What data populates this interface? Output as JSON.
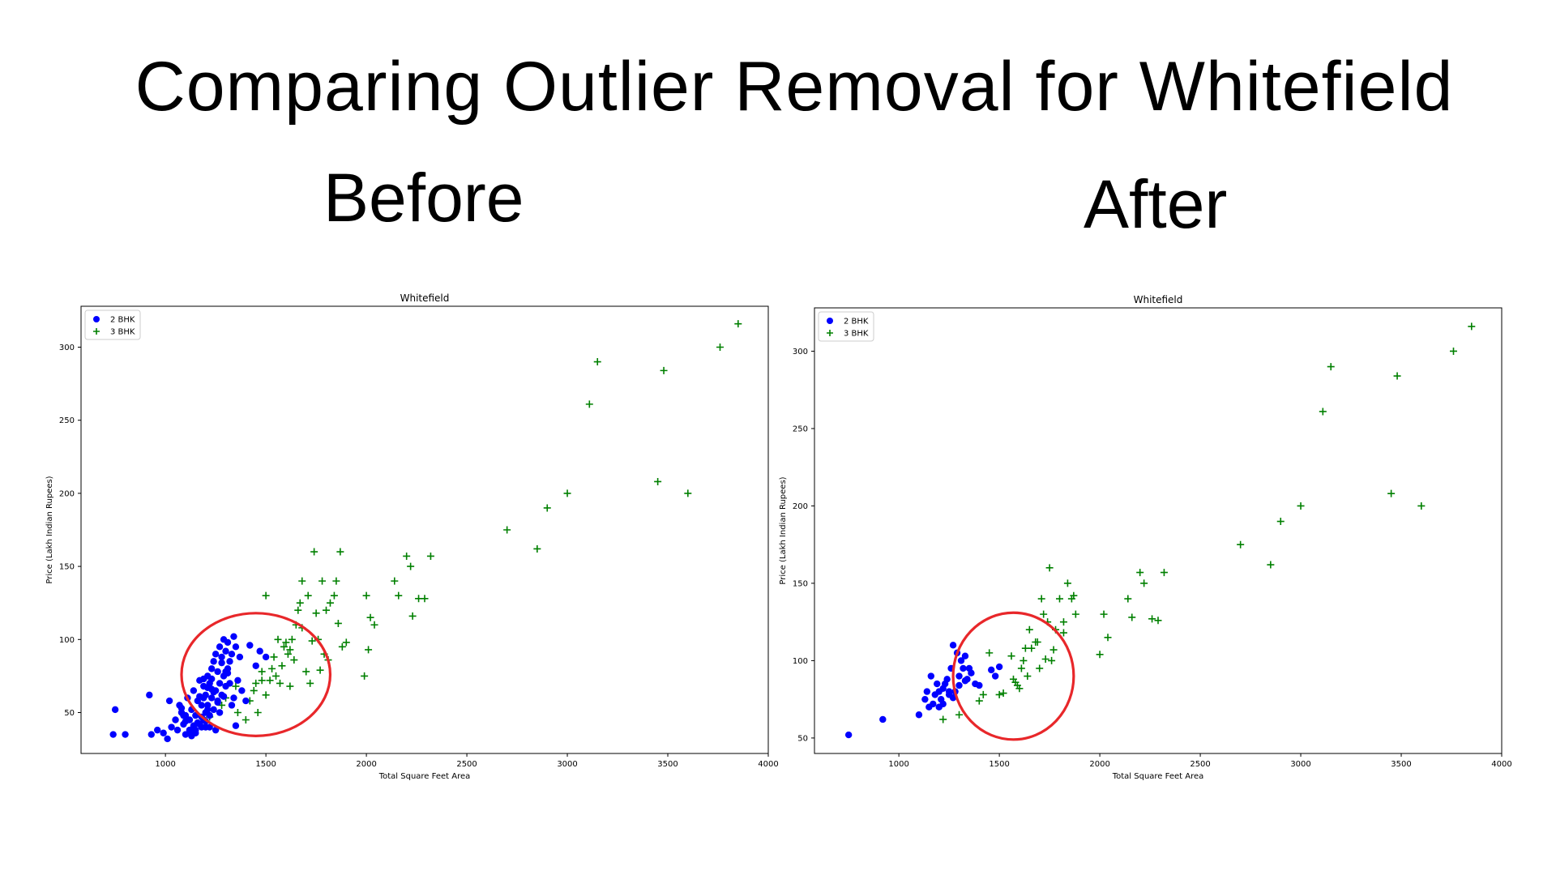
{
  "title": "Comparing Outlier Removal for Whitefield",
  "panels": {
    "before_label": "Before",
    "after_label": "After"
  },
  "colors": {
    "bhk2": "#0000ff",
    "bhk3": "#008000",
    "highlight": "#e8272a"
  },
  "chart_data": [
    {
      "type": "scatter",
      "title": "Whitefield",
      "xlabel": "Total Square Feet Area",
      "ylabel": "Price (Lakh Indian Rupees)",
      "xlim": [
        580,
        4000
      ],
      "ylim": [
        22,
        328
      ],
      "xticks": [
        1000,
        1500,
        2000,
        2500,
        3000,
        3500,
        4000
      ],
      "xtick_labels": [
        "1000",
        "1500",
        "2000",
        "2500",
        "3000",
        "3500",
        "4000"
      ],
      "yticks": [
        50,
        100,
        150,
        200,
        250,
        300
      ],
      "ytick_labels": [
        "50",
        "100",
        "150",
        "200",
        "250",
        "300"
      ],
      "legend_position": "top-left",
      "highlight_ellipse": {
        "cx": 1450,
        "cy": 76,
        "rx": 370,
        "ry": 42
      },
      "series": [
        {
          "name": "2 BHK",
          "marker": "circle",
          "x": [
            740,
            750,
            800,
            920,
            930,
            960,
            990,
            1010,
            1020,
            1030,
            1050,
            1060,
            1070,
            1080,
            1090,
            1100,
            1100,
            1110,
            1120,
            1120,
            1130,
            1140,
            1140,
            1150,
            1150,
            1160,
            1170,
            1170,
            1180,
            1180,
            1190,
            1190,
            1200,
            1200,
            1200,
            1210,
            1210,
            1220,
            1220,
            1230,
            1230,
            1240,
            1240,
            1250,
            1250,
            1260,
            1260,
            1270,
            1270,
            1280,
            1280,
            1290,
            1290,
            1300,
            1300,
            1310,
            1310,
            1320,
            1330,
            1340,
            1350,
            1360,
            1370,
            1380,
            1400,
            1420,
            1450,
            1470,
            1500,
            1130,
            1150,
            1170,
            1100,
            1090,
            1080,
            1200,
            1220,
            1250,
            1270,
            1260,
            1240,
            1230,
            1210,
            1190,
            1180,
            1160,
            1140,
            1120,
            1300,
            1320,
            1340,
            1280,
            1310,
            1330,
            1290,
            1350,
            1210,
            1190,
            1230,
            1170
          ],
          "y": [
            35,
            52,
            35,
            62,
            35,
            38,
            36,
            32,
            58,
            40,
            45,
            38,
            55,
            50,
            42,
            48,
            35,
            60,
            45,
            38,
            52,
            40,
            65,
            48,
            36,
            58,
            42,
            72,
            55,
            40,
            68,
            45,
            62,
            50,
            40,
            75,
            55,
            70,
            48,
            80,
            60,
            85,
            52,
            90,
            65,
            78,
            58,
            95,
            70,
            88,
            62,
            100,
            75,
            92,
            68,
            98,
            80,
            85,
            90,
            102,
            95,
            72,
            88,
            65,
            58,
            96,
            82,
            92,
            88,
            34,
            38,
            42,
            44,
            48,
            53,
            44,
            40,
            38,
            50,
            57,
            64,
            73,
            67,
            60,
            47,
            43,
            41,
            36,
            78,
            70,
            60,
            84,
            77,
            55,
            61,
            41,
            52,
            73,
            66,
            61
          ]
        },
        {
          "name": "3 BHK",
          "marker": "plus",
          "x": [
            1220,
            1280,
            1300,
            1350,
            1360,
            1400,
            1420,
            1440,
            1450,
            1460,
            1480,
            1500,
            1500,
            1520,
            1540,
            1550,
            1560,
            1580,
            1590,
            1600,
            1610,
            1620,
            1630,
            1640,
            1650,
            1660,
            1670,
            1680,
            1700,
            1710,
            1720,
            1740,
            1750,
            1760,
            1780,
            1790,
            1800,
            1820,
            1840,
            1850,
            1870,
            1880,
            1900,
            1990,
            2000,
            2020,
            2040,
            2140,
            2160,
            2200,
            2220,
            2260,
            2290,
            2320,
            2700,
            2850,
            2900,
            3000,
            3110,
            3150,
            3450,
            3480,
            3600,
            3760,
            3850,
            1480,
            1530,
            1570,
            1620,
            1680,
            1730,
            1770,
            1810,
            1860,
            2010,
            2230
          ],
          "y": [
            47,
            55,
            60,
            68,
            50,
            45,
            58,
            65,
            70,
            50,
            78,
            62,
            130,
            72,
            88,
            75,
            100,
            82,
            95,
            98,
            90,
            68,
            100,
            86,
            110,
            120,
            125,
            140,
            78,
            130,
            70,
            160,
            118,
            100,
            140,
            90,
            120,
            125,
            130,
            140,
            160,
            95,
            98,
            75,
            130,
            115,
            110,
            140,
            130,
            157,
            150,
            128,
            128,
            157,
            175,
            162,
            190,
            200,
            261,
            290,
            208,
            284,
            200,
            300,
            316,
            72,
            80,
            70,
            93,
            108,
            99,
            79,
            86,
            111,
            93,
            116
          ]
        }
      ]
    },
    {
      "type": "scatter",
      "title": "Whitefield",
      "xlabel": "Total Square Feet Area",
      "ylabel": "Price (Lakh Indian Rupees)",
      "xlim": [
        580,
        4000
      ],
      "ylim": [
        40,
        328
      ],
      "xticks": [
        1000,
        1500,
        2000,
        2500,
        3000,
        3500,
        4000
      ],
      "xtick_labels": [
        "1000",
        "1500",
        "2000",
        "2500",
        "3000",
        "3500",
        "4000"
      ],
      "yticks": [
        50,
        100,
        150,
        200,
        250,
        300
      ],
      "ytick_labels": [
        "50",
        "100",
        "150",
        "200",
        "250",
        "300"
      ],
      "legend_position": "top-left",
      "highlight_ellipse": {
        "cx": 1570,
        "cy": 90,
        "rx": 300,
        "ry": 41
      },
      "series": [
        {
          "name": "2 BHK",
          "marker": "circle",
          "x": [
            750,
            920,
            1100,
            1130,
            1140,
            1150,
            1160,
            1170,
            1180,
            1190,
            1200,
            1200,
            1210,
            1220,
            1230,
            1240,
            1250,
            1260,
            1270,
            1280,
            1290,
            1300,
            1310,
            1320,
            1330,
            1340,
            1350,
            1360,
            1380,
            1400,
            1460,
            1480,
            1500,
            1220,
            1250,
            1270,
            1300,
            1330
          ],
          "y": [
            52,
            62,
            65,
            75,
            80,
            70,
            90,
            72,
            78,
            85,
            70,
            80,
            75,
            82,
            85,
            88,
            78,
            95,
            110,
            80,
            105,
            90,
            100,
            95,
            103,
            88,
            95,
            92,
            85,
            84,
            94,
            90,
            96,
            72,
            80,
            76,
            84,
            87
          ]
        },
        {
          "name": "3 BHK",
          "marker": "plus",
          "x": [
            1220,
            1300,
            1400,
            1420,
            1450,
            1500,
            1520,
            1560,
            1570,
            1590,
            1600,
            1610,
            1630,
            1640,
            1650,
            1660,
            1680,
            1700,
            1710,
            1720,
            1740,
            1750,
            1760,
            1780,
            1800,
            1820,
            1840,
            1860,
            1880,
            2000,
            2020,
            2040,
            2140,
            2160,
            2200,
            2220,
            2260,
            2290,
            2320,
            2700,
            2850,
            2900,
            3000,
            3110,
            3150,
            3450,
            3480,
            3600,
            3760,
            3850,
            1580,
            1620,
            1690,
            1730,
            1770,
            1820,
            1870
          ],
          "y": [
            62,
            65,
            74,
            78,
            105,
            78,
            79,
            103,
            88,
            84,
            82,
            95,
            108,
            90,
            120,
            108,
            112,
            95,
            140,
            130,
            125,
            160,
            100,
            120,
            140,
            125,
            150,
            140,
            130,
            104,
            130,
            115,
            140,
            128,
            157,
            150,
            127,
            126,
            157,
            175,
            162,
            190,
            200,
            261,
            290,
            208,
            284,
            200,
            300,
            316,
            86,
            100,
            112,
            101,
            107,
            118,
            142
          ]
        }
      ]
    }
  ]
}
